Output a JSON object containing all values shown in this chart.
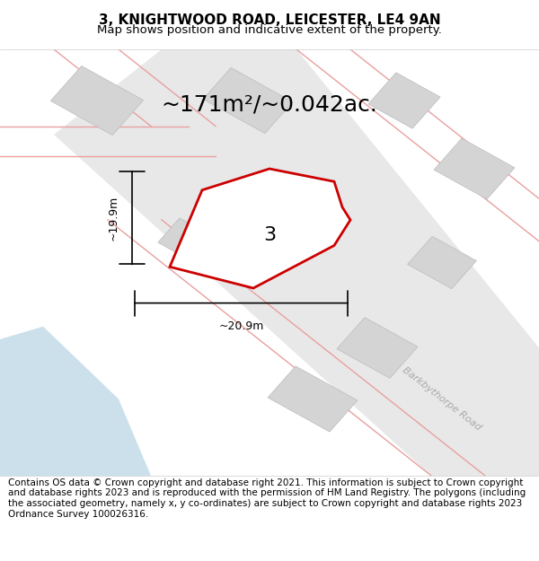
{
  "title": "3, KNIGHTWOOD ROAD, LEICESTER, LE4 9AN",
  "subtitle": "Map shows position and indicative extent of the property.",
  "area_label": "~171m²/~0.042ac.",
  "property_number": "3",
  "dim_width": "~20.9m",
  "dim_height": "~19.9m",
  "road_label": "Barkbythorpe Road",
  "footer": "Contains OS data © Crown copyright and database right 2021. This information is subject to Crown copyright and database rights 2023 and is reproduced with the permission of HM Land Registry. The polygons (including the associated geometry, namely x, y co-ordinates) are subject to Crown copyright and database rights 2023 Ordnance Survey 100026316.",
  "bg_color": "#f5f5f5",
  "map_bg": "#f0f0f0",
  "plot_outline_color": "#cc0000",
  "building_fill": "#d8d8d8",
  "road_fill": "#ffffff",
  "pink_road_color": "#f0a0a0",
  "water_color": "#d0e8f0",
  "title_fontsize": 11,
  "subtitle_fontsize": 9.5,
  "area_fontsize": 18,
  "footer_fontsize": 7.5
}
